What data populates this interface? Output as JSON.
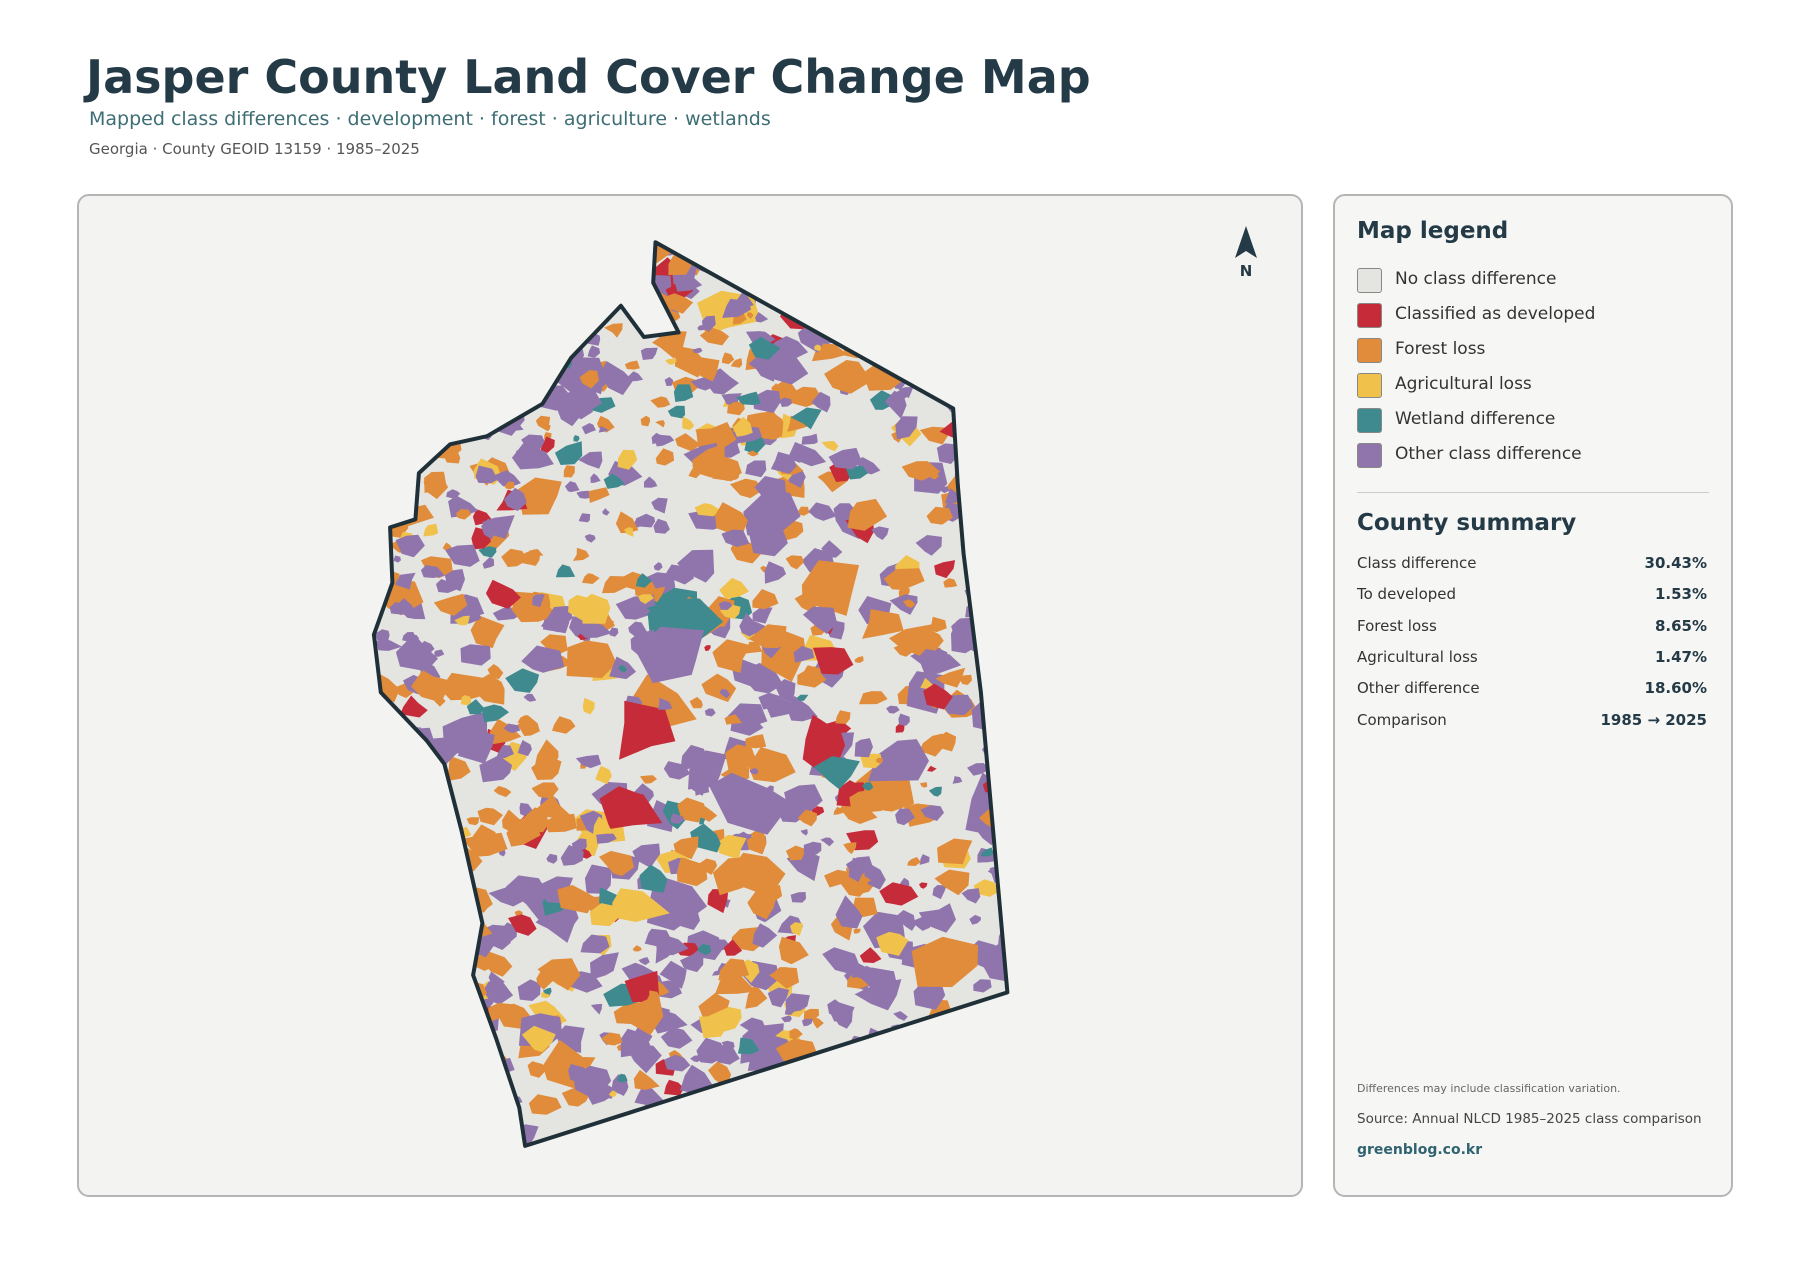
{
  "header": {
    "title": "Jasper County Land Cover Change Map",
    "subtitle": "Mapped class differences · development · forest · agriculture · wetlands",
    "meta": "Georgia · County GEOID 13159 · 1985–2025"
  },
  "map": {
    "north_label": "N"
  },
  "legend": {
    "title": "Map legend",
    "items": [
      {
        "label": "No class difference",
        "color": "#e4e4e1"
      },
      {
        "label": "Classified as developed",
        "color": "#c62b3a"
      },
      {
        "label": "Forest loss",
        "color": "#e08c3a"
      },
      {
        "label": "Agricultural loss",
        "color": "#f0c24b"
      },
      {
        "label": "Wetland difference",
        "color": "#3f8a8f"
      },
      {
        "label": "Other class difference",
        "color": "#9075ad"
      }
    ]
  },
  "summary": {
    "title": "County summary",
    "rows": [
      [
        "Class difference",
        "30.43%"
      ],
      [
        "To developed",
        "1.53%"
      ],
      [
        "Forest loss",
        "8.65%"
      ],
      [
        "Agricultural loss",
        "1.47%"
      ],
      [
        "Other difference",
        "18.60%"
      ],
      [
        "Comparison",
        "1985 → 2025"
      ]
    ]
  },
  "notes": {
    "caveat": "Differences may include classification variation.",
    "source": "Source: Annual NLCD 1985–2025 class comparison",
    "site": "greenblog.co.kr"
  }
}
